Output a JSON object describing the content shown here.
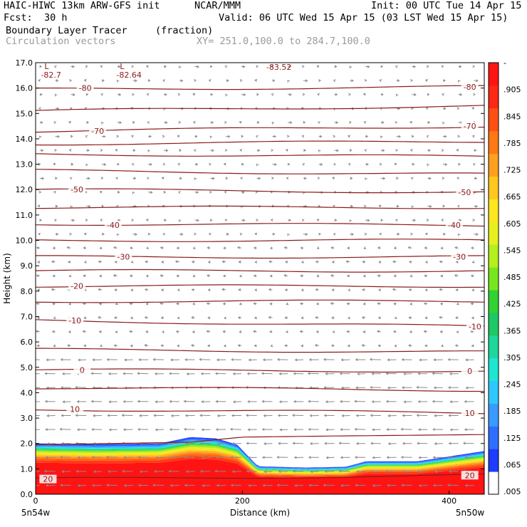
{
  "header": {
    "model_line": "HAIC-HIWC 13km ARW-GFS init",
    "org": "NCAR/MMM",
    "init": "Init: 00 UTC Tue 14 Apr 15",
    "fcst_label": "Fcst:",
    "fcst_value": "30 h",
    "valid": "Valid: 06 UTC Wed 15 Apr 15 (03 LST Wed 15 Apr 15)",
    "field_name": "Boundary Layer Tracer",
    "field_units": "(fraction)",
    "vector_label": "Circulation vectors",
    "cross_section": "XY= 251.0,100.0 to 284.7,100.0"
  },
  "colors": {
    "contour": "#8b1a1a",
    "vectors": "#8a8a8a",
    "palette": [
      "#ffffff",
      "#1e3cff",
      "#2f6fff",
      "#3a9aff",
      "#2ec8ff",
      "#1ee6d2",
      "#1ed79a",
      "#1ec864",
      "#32d232",
      "#78e61e",
      "#b4f01e",
      "#e6f01e",
      "#ffe61e",
      "#ffc81e",
      "#ffa01e",
      "#ff7814",
      "#ff5014",
      "#ff2814",
      "#ff1414"
    ]
  },
  "chart_data": {
    "type": "vertical cross-section (filled contour + line contour + vectors)",
    "field": "Boundary Layer Tracer",
    "units": "fraction",
    "xlabel": "Distance (km)",
    "ylabel": "Height (km)",
    "xlim": [
      0,
      434
    ],
    "ylim": [
      0,
      17
    ],
    "x_ticks": [
      0,
      200,
      400
    ],
    "x_tick_labels": [
      "0",
      "200",
      "400"
    ],
    "y_ticks": [
      0,
      1,
      2,
      3,
      4,
      5,
      6,
      7,
      8,
      9,
      10,
      11,
      12,
      13,
      14,
      15,
      16,
      17
    ],
    "y_tick_labels": [
      "0.0",
      "1.0",
      "2.0",
      "3.0",
      "4.0",
      "5.0",
      "6.0",
      "7.0",
      "8.0",
      "9.0",
      "10.0",
      "11.0",
      "12.0",
      "13.0",
      "14.0",
      "15.0",
      "16.0",
      "17.0"
    ],
    "x_endpoints": {
      "left": "5n54w",
      "right": "5n50w"
    },
    "colorbar_levels": [
      "-",
      ".905",
      ".845",
      ".785",
      ".725",
      ".665",
      ".605",
      ".545",
      ".485",
      ".425",
      ".365",
      ".305",
      ".245",
      ".185",
      ".125",
      ".065",
      ".005"
    ],
    "tracer_top_km": [
      [
        0,
        2.0
      ],
      [
        60,
        1.97
      ],
      [
        120,
        2.0
      ],
      [
        150,
        2.25
      ],
      [
        175,
        2.2
      ],
      [
        195,
        1.95
      ],
      [
        215,
        1.1
      ],
      [
        260,
        1.05
      ],
      [
        300,
        1.08
      ],
      [
        320,
        1.3
      ],
      [
        370,
        1.3
      ],
      [
        410,
        1.55
      ],
      [
        434,
        1.7
      ]
    ],
    "contour_labels": [
      {
        "text": "-80",
        "x": 48,
        "y": 16.0
      },
      {
        "text": "-80",
        "x": 420,
        "y": 16.05
      },
      {
        "text": "-70",
        "x": 60,
        "y": 14.3
      },
      {
        "text": "-70",
        "x": 420,
        "y": 14.5
      },
      {
        "text": "-50",
        "x": 40,
        "y": 12.0
      },
      {
        "text": "-50",
        "x": 415,
        "y": 11.9
      },
      {
        "text": "-40",
        "x": 75,
        "y": 10.6
      },
      {
        "text": "-40",
        "x": 405,
        "y": 10.6
      },
      {
        "text": "-30",
        "x": 85,
        "y": 9.35
      },
      {
        "text": "-30",
        "x": 410,
        "y": 9.35
      },
      {
        "text": "-20",
        "x": 40,
        "y": 8.2
      },
      {
        "text": "-10",
        "x": 38,
        "y": 6.85
      },
      {
        "text": "-10",
        "x": 425,
        "y": 6.6
      },
      {
        "text": "0",
        "x": 45,
        "y": 4.9
      },
      {
        "text": "0",
        "x": 420,
        "y": 4.85
      },
      {
        "text": "10",
        "x": 38,
        "y": 3.35
      },
      {
        "text": "10",
        "x": 420,
        "y": 3.2
      },
      {
        "text": "20",
        "x": 12,
        "y": 0.6
      },
      {
        "text": "20",
        "x": 420,
        "y": 0.75
      }
    ],
    "contour_levels": [
      {
        "value": -80,
        "y0": 15.95,
        "y1": 16.05
      },
      {
        "value": -75,
        "y0": 15.1,
        "y1": 15.3
      },
      {
        "value": -70,
        "y0": 14.3,
        "y1": 14.5
      },
      {
        "value": -65,
        "y0": 13.8,
        "y1": 13.9
      },
      {
        "value": -60,
        "y0": 13.4,
        "y1": 13.3
      },
      {
        "value": -55,
        "y0": 12.75,
        "y1": 12.6
      },
      {
        "value": -50,
        "y0": 12.0,
        "y1": 11.9
      },
      {
        "value": -45,
        "y0": 11.3,
        "y1": 11.3
      },
      {
        "value": -40,
        "y0": 10.65,
        "y1": 10.6
      },
      {
        "value": -35,
        "y0": 10.0,
        "y1": 10.0
      },
      {
        "value": -30,
        "y0": 9.35,
        "y1": 9.35
      },
      {
        "value": -25,
        "y0": 8.8,
        "y1": 8.8
      },
      {
        "value": -20,
        "y0": 8.2,
        "y1": 8.2
      },
      {
        "value": -15,
        "y0": 7.6,
        "y1": 7.6
      },
      {
        "value": -10,
        "y0": 6.85,
        "y1": 6.6
      },
      {
        "value": -5,
        "y0": 5.7,
        "y1": 5.6
      },
      {
        "value": 0,
        "y0": 4.9,
        "y1": 4.85
      },
      {
        "value": 5,
        "y0": 4.2,
        "y1": 4.1
      },
      {
        "value": 10,
        "y0": 3.35,
        "y1": 3.2
      },
      {
        "value": 15,
        "y0": 1.95,
        "y1": 2.35
      },
      {
        "value": 20,
        "y0": 0.6,
        "y1": 0.75
      }
    ],
    "lows": [
      {
        "label": "L",
        "value": "-82.7",
        "x": 12,
        "y": 16.75
      },
      {
        "label": "L",
        "value": "-82.64",
        "x": 85,
        "y": 16.75
      },
      {
        "label": "",
        "value": "-83.52",
        "x": 230,
        "y": 17.05
      }
    ],
    "vectors_description": "Circulation vectors, weak aloft, easterly (right-to-left) in lower levels"
  }
}
